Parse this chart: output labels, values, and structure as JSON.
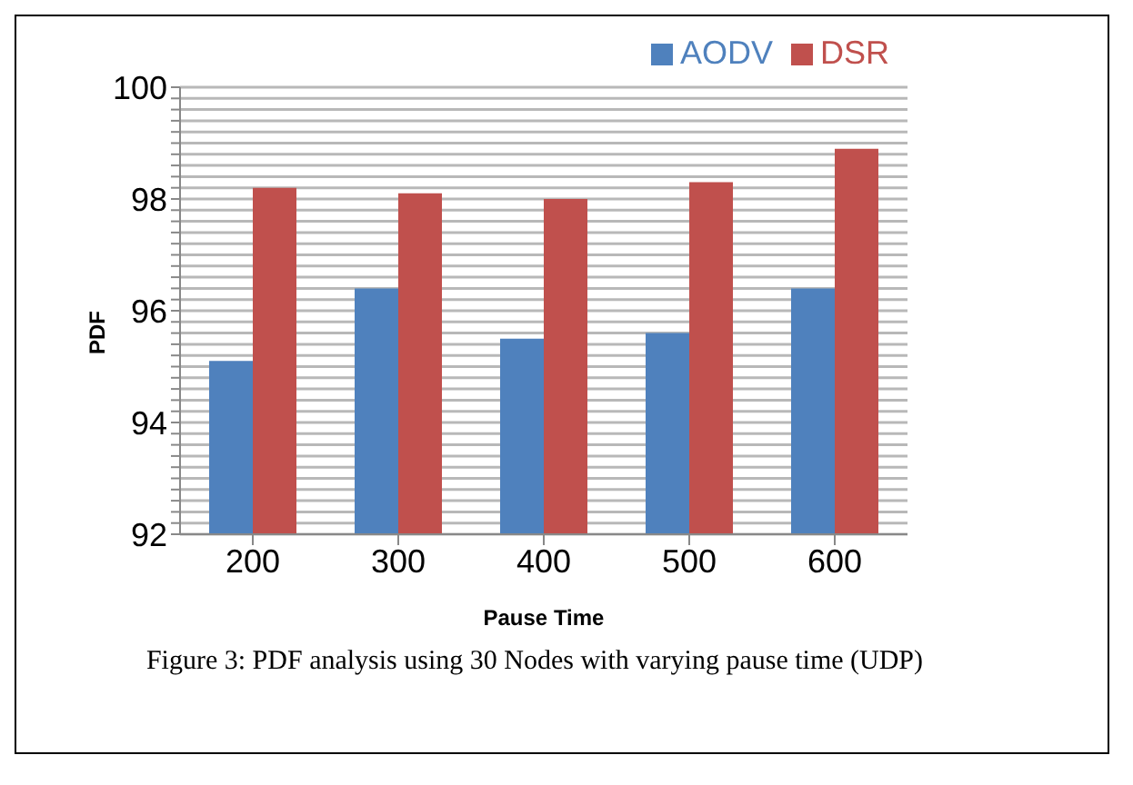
{
  "chart_data": {
    "type": "bar",
    "xlabel": "Pause Time",
    "ylabel": "PDF",
    "categories": [
      "200",
      "300",
      "400",
      "500",
      "600"
    ],
    "series": [
      {
        "name": "AODV",
        "color": "#4f81bd",
        "values": [
          95.1,
          96.4,
          95.5,
          95.6,
          96.4
        ]
      },
      {
        "name": "DSR",
        "color": "#c0504d",
        "values": [
          98.2,
          98.1,
          98.0,
          98.3,
          98.9
        ]
      }
    ],
    "ylim": [
      92,
      100
    ],
    "yticks": [
      92,
      {
        "value": 92.2,
        "label": null
      },
      {
        "value": 92.4,
        "label": null
      },
      {
        "value": 92.6,
        "label": null
      },
      {
        "value": 92.8,
        "label": null
      },
      94,
      {
        "value": 93.2,
        "label": null
      },
      {
        "value": 93.4,
        "label": null
      },
      {
        "value": 93.6,
        "label": null
      },
      {
        "value": 93.8,
        "label": null
      },
      {
        "value": 93,
        "label": null
      },
      {
        "value": 94.2,
        "label": null
      },
      {
        "value": 94.4,
        "label": null
      },
      {
        "value": 94.6,
        "label": null
      },
      {
        "value": 94.8,
        "label": null
      },
      {
        "value": 95,
        "label": null
      },
      {
        "value": 95.2,
        "label": null
      },
      {
        "value": 95.4,
        "label": null
      },
      {
        "value": 95.6,
        "label": null
      },
      {
        "value": 95.8,
        "label": null
      },
      96,
      {
        "value": 96.2,
        "label": null
      },
      {
        "value": 96.4,
        "label": null
      },
      {
        "value": 96.6,
        "label": null
      },
      {
        "value": 96.8,
        "label": null
      },
      {
        "value": 97,
        "label": null
      },
      {
        "value": 97.2,
        "label": null
      },
      {
        "value": 97.4,
        "label": null
      },
      {
        "value": 97.6,
        "label": null
      },
      {
        "value": 97.8,
        "label": null
      },
      98,
      {
        "value": 98.2,
        "label": null
      },
      {
        "value": 98.4,
        "label": null
      },
      {
        "value": 98.6,
        "label": null
      },
      {
        "value": 98.8,
        "label": null
      },
      {
        "value": 99,
        "label": null
      },
      {
        "value": 99.2,
        "label": null
      },
      {
        "value": 99.4,
        "label": null
      },
      {
        "value": 99.6,
        "label": null
      },
      {
        "value": 99.8,
        "label": null
      },
      100
    ],
    "grid": "y",
    "legend": "top right",
    "annotations": [
      "Figure 3: PDF analysis using 30 Nodes with varying pause time (UDP)"
    ]
  }
}
